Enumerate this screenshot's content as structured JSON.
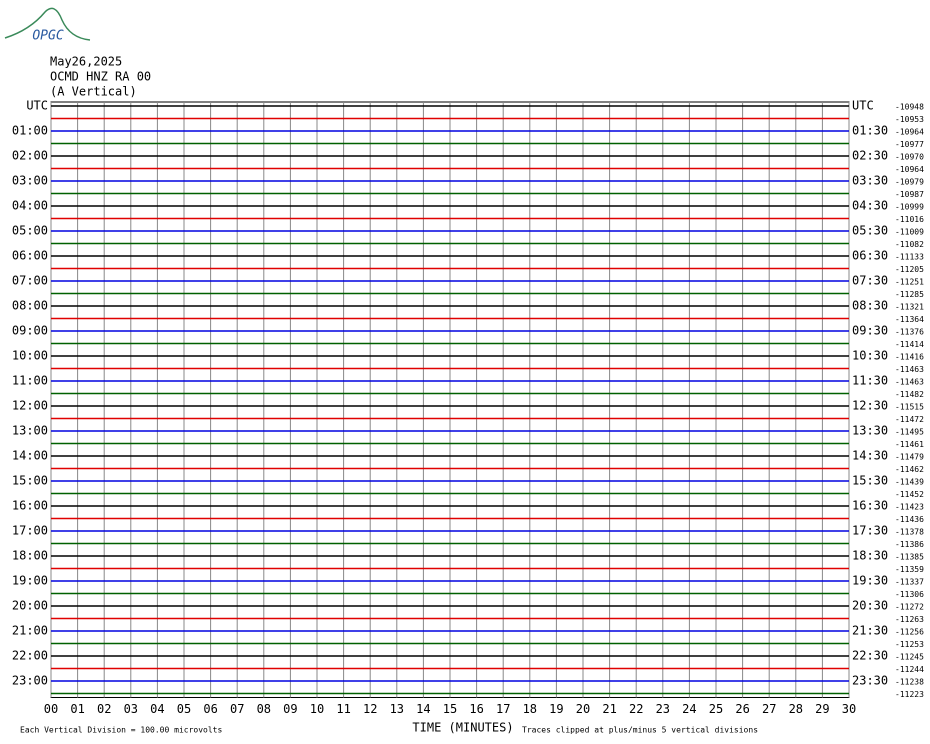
{
  "logo": "OPGC",
  "header": {
    "date": "May26,2025",
    "station": "OCMD HNZ RA 00",
    "component": "(A Vertical)"
  },
  "left_labels": [
    "UTC",
    "01:00",
    "02:00",
    "03:00",
    "04:00",
    "05:00",
    "06:00",
    "07:00",
    "08:00",
    "09:00",
    "10:00",
    "11:00",
    "12:00",
    "13:00",
    "14:00",
    "15:00",
    "16:00",
    "17:00",
    "18:00",
    "19:00",
    "20:00",
    "21:00",
    "22:00",
    "23:00"
  ],
  "right_labels": [
    "UTC",
    "01:30",
    "02:30",
    "03:30",
    "04:30",
    "05:30",
    "06:30",
    "07:30",
    "08:30",
    "09:30",
    "10:30",
    "11:30",
    "12:30",
    "13:30",
    "14:30",
    "15:30",
    "16:30",
    "17:30",
    "18:30",
    "19:30",
    "20:30",
    "21:30",
    "22:30",
    "23:30"
  ],
  "row_offsets": [
    "-10948",
    "-10953",
    "-10964",
    "-10977",
    "-10970",
    "-10964",
    "-10979",
    "-10987",
    "-10999",
    "-11016",
    "-11009",
    "-11082",
    "-11133",
    "-11205",
    "-11251",
    "-11285",
    "-11321",
    "-11364",
    "-11376",
    "-11414",
    "-11416",
    "-11463",
    "-11463",
    "-11482",
    "-11515",
    "-11472",
    "-11495",
    "-11461",
    "-11479",
    "-11462",
    "-11439",
    "-11452",
    "-11423",
    "-11436",
    "-11378",
    "-11386",
    "-11385",
    "-11359",
    "-11337",
    "-11306",
    "-11272",
    "-11263",
    "-11256",
    "-11253",
    "-11245",
    "-11244",
    "-11238",
    "-11223"
  ],
  "x_ticks": [
    "00",
    "01",
    "02",
    "03",
    "04",
    "05",
    "06",
    "07",
    "08",
    "09",
    "10",
    "11",
    "12",
    "13",
    "14",
    "15",
    "16",
    "17",
    "18",
    "19",
    "20",
    "21",
    "22",
    "23",
    "24",
    "25",
    "26",
    "27",
    "28",
    "29",
    "30"
  ],
  "footer": {
    "scale": "Each Vertical Division =  100.00 microvolts",
    "axis": "TIME (MINUTES)",
    "clip": "Traces clipped at plus/minus 5 vertical divisions"
  }
}
